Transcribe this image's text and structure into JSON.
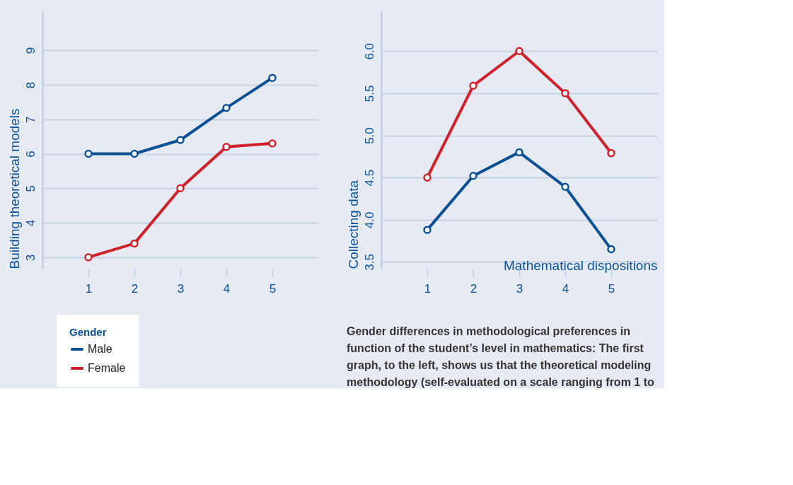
{
  "chart_data": [
    {
      "type": "line",
      "ylabel": "Building theoretical models",
      "legend_title": "Gender",
      "legend": "bottom left",
      "marker": "circle",
      "line_style": "solid",
      "grid": "y",
      "categories": [
        "1",
        "2",
        "3",
        "4",
        "5"
      ],
      "ylim": [
        2.67,
        10.15
      ],
      "yticks": [
        3,
        4,
        5,
        6,
        7,
        8,
        9
      ],
      "series": [
        {
          "name": "Male",
          "color": "#0a5094",
          "values": [
            6.0,
            6.0,
            6.4,
            7.33,
            8.2
          ]
        },
        {
          "name": "Female",
          "color": "#d0202a",
          "values": [
            3.0,
            3.4,
            5.0,
            6.2,
            6.3
          ]
        }
      ]
    },
    {
      "type": "line",
      "ylabel": "Collecting data",
      "xlabel": "Mathematical dispositions",
      "marker": "circle",
      "line_style": "solid",
      "grid": "y",
      "categories": [
        "1",
        "2",
        "3",
        "4",
        "5"
      ],
      "ylim": [
        3.42,
        6.48
      ],
      "yticks": [
        {
          "value": 3.5,
          "label": "3.5"
        },
        {
          "value": 4,
          "label": "4.0"
        },
        {
          "value": 4.5,
          "label": "4.5"
        },
        {
          "value": 5,
          "label": "5.0"
        },
        {
          "value": 5.5,
          "label": "5.5"
        },
        {
          "value": 6,
          "label": "6.0"
        }
      ],
      "series": [
        {
          "name": "Male",
          "color": "#0a5094",
          "values": [
            3.88,
            4.52,
            4.8,
            4.39,
            3.65
          ]
        },
        {
          "name": "Female",
          "color": "#d0202a",
          "values": [
            4.5,
            5.59,
            6.0,
            5.5,
            4.79
          ]
        }
      ],
      "annotations": [
        "Gender differences in methodological preferences in function of the student’s level in mathematics: The first graph, to the left, shows us that the theoretical modeling methodology (self-evaluated on a scale ranging from 1 to"
      ]
    }
  ]
}
